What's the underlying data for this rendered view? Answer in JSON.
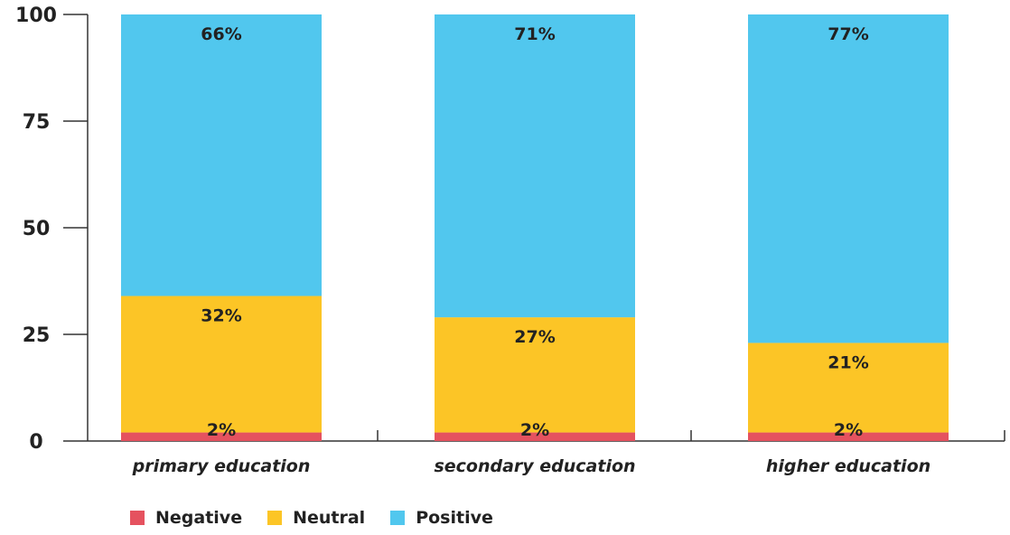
{
  "chart_data": {
    "type": "bar",
    "stacked": true,
    "categories": [
      "primary education",
      "secondary education",
      "higher education"
    ],
    "series": [
      {
        "name": "Negative",
        "values": [
          2,
          2,
          2
        ],
        "labels": [
          "2%",
          "2%",
          "2%"
        ],
        "color": "#e5525f"
      },
      {
        "name": "Neutral",
        "values": [
          32,
          27,
          21
        ],
        "labels": [
          "32%",
          "27%",
          "21%"
        ],
        "color": "#fcc526"
      },
      {
        "name": "Positive",
        "values": [
          66,
          71,
          77
        ],
        "labels": [
          "66%",
          "71%",
          "77%"
        ],
        "color": "#51c7ee"
      }
    ],
    "yticks": [
      0,
      25,
      50,
      75,
      100
    ],
    "ylim": [
      0,
      100
    ],
    "title": "",
    "xlabel": "",
    "ylabel": "",
    "grid": false,
    "legend_position": "bottom-left"
  }
}
